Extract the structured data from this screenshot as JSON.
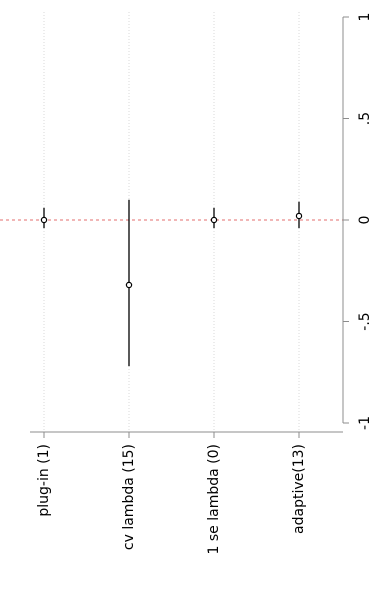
{
  "chart_data": {
    "type": "coefficient-plot",
    "orientation": "rotated-90",
    "categories": [
      "plug-in (1)",
      "cv lambda (15)",
      "1 se lambda (0)",
      "adaptive(13)"
    ],
    "estimates": [
      0.0,
      -0.32,
      0.0,
      0.02
    ],
    "ci_low": [
      -0.04,
      -0.72,
      -0.04,
      -0.04
    ],
    "ci_high": [
      0.06,
      0.1,
      0.06,
      0.09
    ],
    "value_axis": {
      "range": [
        -1,
        1
      ],
      "ticks": [
        -1,
        -0.5,
        0,
        0.5,
        1
      ],
      "tick_labels": [
        "-1",
        "-.5",
        "0",
        ".5",
        "1"
      ]
    },
    "reference_line": {
      "value": 0,
      "color": "#e36c6c",
      "style": "dashed"
    },
    "grid": true,
    "colors": {
      "marks": "#000000",
      "grid": "#d9d9d9",
      "axis": "#8c8c8c"
    }
  }
}
